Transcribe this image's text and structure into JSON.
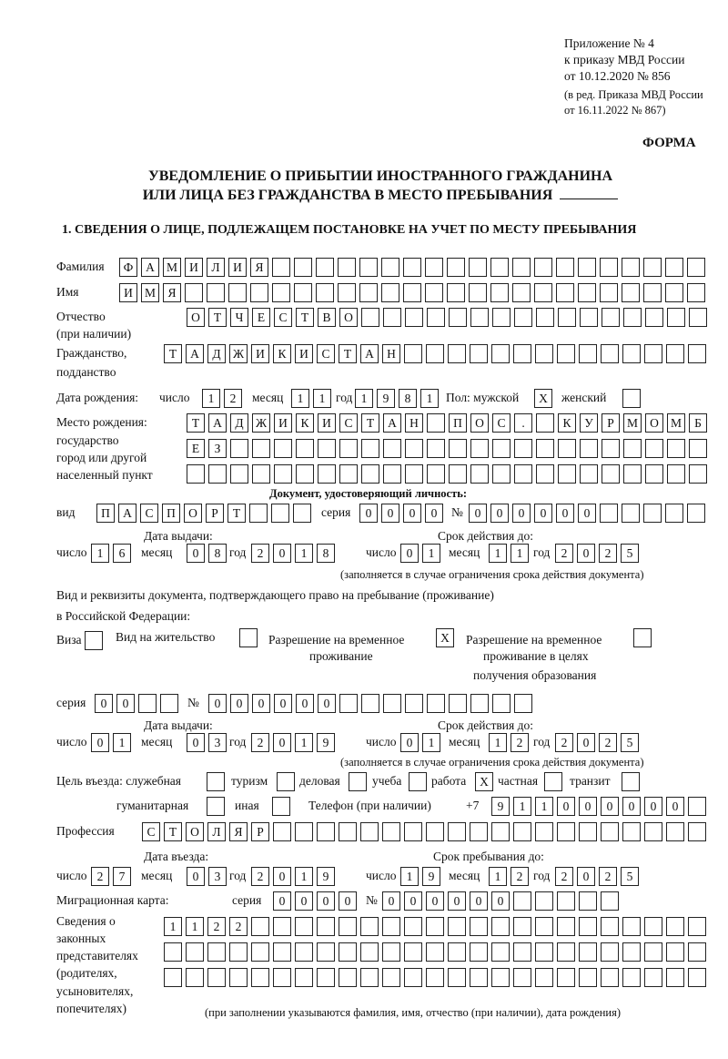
{
  "header": {
    "appendix": "Приложение № 4",
    "order": "к приказу МВД России",
    "order_date": "от 10.12.2020 № 856",
    "edition": "(в ред. Приказа МВД России",
    "edition_date": "от 16.11.2022 № 867)",
    "form": "ФОРМА",
    "title_line1": "УВЕДОМЛЕНИЕ О ПРИБЫТИИ ИНОСТРАННОГО ГРАЖДАНИНА",
    "title_line2": "ИЛИ ЛИЦА БЕЗ ГРАЖДАНСТВА В МЕСТО ПРЕБЫВАНИЯ",
    "section1": "1. СВЕДЕНИЯ О ЛИЦЕ, ПОДЛЕЖАЩЕМ ПОСТАНОВКЕ НА УЧЕТ ПО МЕСТУ ПРЕБЫВАНИЯ"
  },
  "labels": {
    "surname": "Фамилия",
    "name": "Имя",
    "patronymic": "Отчество",
    "patronymic_note": "(при наличии)",
    "citizenship": "Гражданство,",
    "citizenship2": "подданство",
    "birth_date": "Дата рождения:",
    "day": "число",
    "month": "месяц",
    "year": "год",
    "sex": "Пол: мужской",
    "female": "женский",
    "birthplace1": "Место рождения:",
    "birthplace2": "государство",
    "birthplace3": "город или другой",
    "birthplace4": "населенный пункт",
    "id_doc": "Документ, удостоверяющий личность:",
    "kind": "вид",
    "series": "серия",
    "number": "№",
    "issue_date": "Дата выдачи:",
    "valid_until": "Срок действия до:",
    "validity_note": "(заполняется в случае ограничения срока действия документа)",
    "right_doc1": "Вид и реквизиты документа, подтверждающего право на пребывание (проживание)",
    "right_doc2": "в Российской Федерации:",
    "visa": "Виза",
    "residence": "Вид на жительство",
    "temp1": "Разрешение на временное",
    "temp2": "проживание",
    "edu1": "Разрешение на временное",
    "edu2": "проживание в целях",
    "edu3": "получения образования",
    "purpose": "Цель въезда: служебная",
    "tourism": "туризм",
    "business": "деловая",
    "study": "учеба",
    "work": "работа",
    "private": "частная",
    "transit": "транзит",
    "humanitarian": "гуманитарная",
    "other": "иная",
    "phone": "Телефон (при наличии)",
    "phone_prefix": "+7",
    "profession": "Профессия",
    "entry_date": "Дата въезда:",
    "stay_until": "Срок пребывания до:",
    "migration_card": "Миграционная карта:",
    "reps1": "Сведения о",
    "reps2": "законных",
    "reps3": "представителях",
    "reps4": "(родителях,",
    "reps5": "усыновителях,",
    "reps6": "попечителях)",
    "reps_note": "(при заполнении указываются фамилия, имя, отчество (при наличии), дата рождения)"
  },
  "fields": {
    "surname": {
      "value": "ФАМИЛИЯ",
      "count": 27
    },
    "name": {
      "value": "ИМЯ",
      "count": 27
    },
    "patronymic": {
      "value": "ОТЧЕСТВО",
      "count": 24
    },
    "citizenship": {
      "value": "ТАДЖИКИСТАН",
      "count": 25
    },
    "birth_day": {
      "value": "12",
      "count": 2
    },
    "birth_month": {
      "value": "11",
      "count": 2
    },
    "birth_year": {
      "value": "1981",
      "count": 4
    },
    "sex_male": {
      "value": "X",
      "count": 1
    },
    "sex_female": {
      "value": "",
      "count": 1
    },
    "birthplace_row1": {
      "value": "ТАДЖИКИСТАН ПОС. КУРМОМБ",
      "count": 24
    },
    "birthplace_row2": {
      "value": "ЕЗ",
      "count": 24
    },
    "birthplace_row3": {
      "value": "",
      "count": 24
    },
    "id_kind": {
      "value": "ПАСПОРТ",
      "count": 10
    },
    "id_series": {
      "value": "0000",
      "count": 4
    },
    "id_number": {
      "value": "000000",
      "count": 11
    },
    "id_issue_day": {
      "value": "16",
      "count": 2
    },
    "id_issue_month": {
      "value": "08",
      "count": 2
    },
    "id_issue_year": {
      "value": "2018",
      "count": 4
    },
    "id_valid_day": {
      "value": "01",
      "count": 2
    },
    "id_valid_month": {
      "value": "11",
      "count": 2
    },
    "id_valid_year": {
      "value": "2025",
      "count": 4
    },
    "visa": {
      "value": "",
      "count": 1
    },
    "residence": {
      "value": "",
      "count": 1
    },
    "temp_residence": {
      "value": "X",
      "count": 1
    },
    "edu_residence": {
      "value": "",
      "count": 1
    },
    "rd_series": {
      "value": "00",
      "count": 4
    },
    "rd_number": {
      "value": "000000",
      "count": 15
    },
    "rd_issue_day": {
      "value": "01",
      "count": 2
    },
    "rd_issue_month": {
      "value": "03",
      "count": 2
    },
    "rd_issue_year": {
      "value": "2019",
      "count": 4
    },
    "rd_valid_day": {
      "value": "01",
      "count": 2
    },
    "rd_valid_month": {
      "value": "12",
      "count": 2
    },
    "rd_valid_year": {
      "value": "2025",
      "count": 4
    },
    "p_service": {
      "value": "",
      "count": 1
    },
    "p_tourism": {
      "value": "",
      "count": 1
    },
    "p_business": {
      "value": "",
      "count": 1
    },
    "p_study": {
      "value": "",
      "count": 1
    },
    "p_work": {
      "value": "X",
      "count": 1
    },
    "p_private": {
      "value": "",
      "count": 1
    },
    "p_transit": {
      "value": "",
      "count": 1
    },
    "p_humanitarian": {
      "value": "",
      "count": 1
    },
    "p_other": {
      "value": "",
      "count": 1
    },
    "phone": {
      "value": "911000000",
      "count": 10
    },
    "profession": {
      "value": "СТОЛЯР",
      "count": 26
    },
    "entry_day": {
      "value": "27",
      "count": 2
    },
    "entry_month": {
      "value": "03",
      "count": 2
    },
    "entry_year": {
      "value": "2019",
      "count": 4
    },
    "stay_day": {
      "value": "19",
      "count": 2
    },
    "stay_month": {
      "value": "12",
      "count": 2
    },
    "stay_year": {
      "value": "2025",
      "count": 4
    },
    "mc_series": {
      "value": "0000",
      "count": 4
    },
    "mc_number": {
      "value": "000000",
      "count": 11
    },
    "reps_row1": {
      "value": "1122",
      "count": 25
    },
    "reps_row2": {
      "value": "",
      "count": 25
    },
    "reps_row3": {
      "value": "",
      "count": 25
    }
  }
}
